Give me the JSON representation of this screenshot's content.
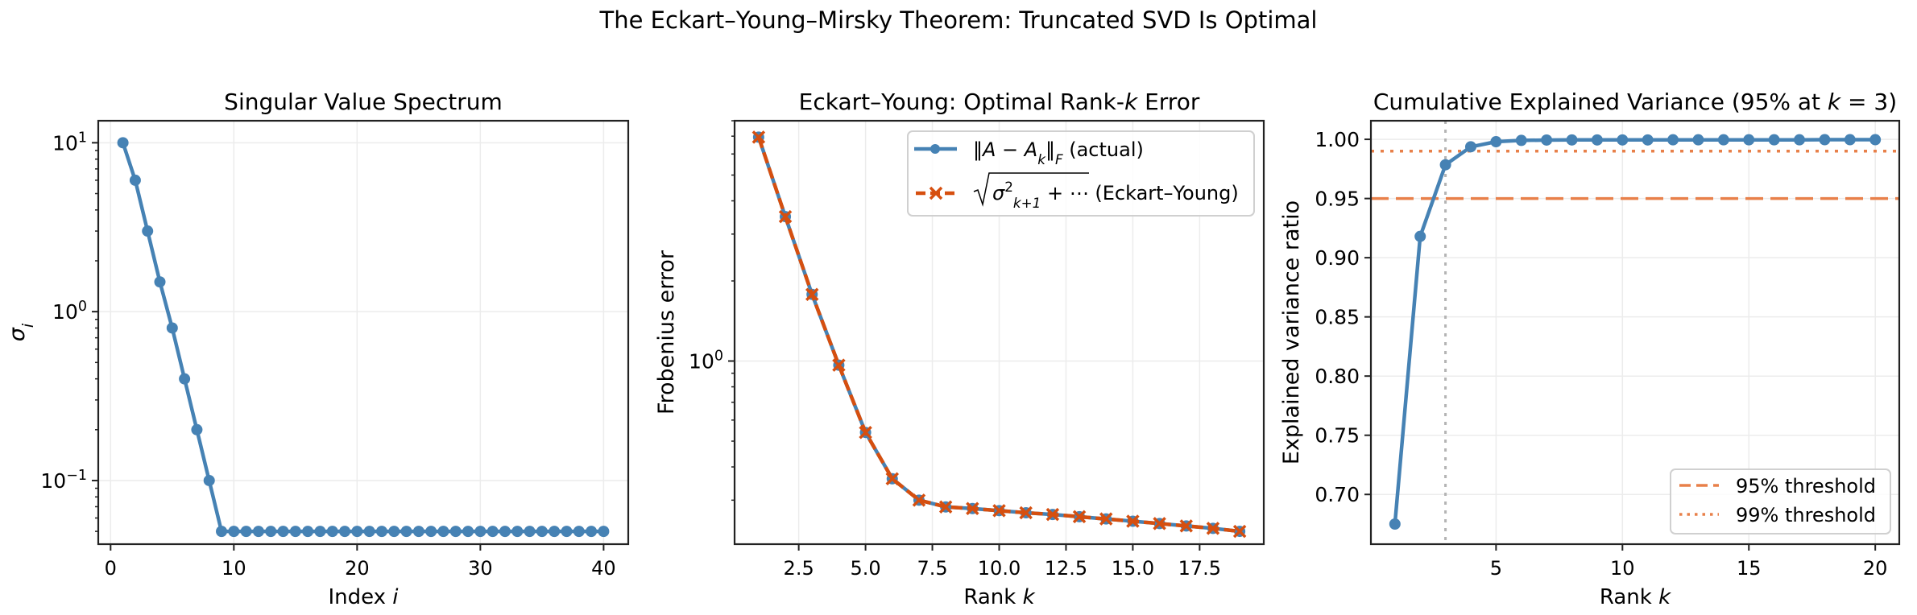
{
  "figure": {
    "suptitle": "The Eckart–Young–Mirsky Theorem: Truncated SVD Is Optimal"
  },
  "colors": {
    "blue": "#4682b4",
    "orange_red": "#d64f0f",
    "orange": "#e8804a",
    "gray_vline": "#b4b4b4",
    "grid": "#ececec",
    "axis": "#222222"
  },
  "chart_data": [
    {
      "type": "line",
      "title": "Singular Value Spectrum",
      "xlabel": "Index i",
      "ylabel": "σ_i",
      "yscale": "log",
      "grid": true,
      "xlim": [
        -1,
        42
      ],
      "ylim": [
        0.042,
        13.5
      ],
      "xticks": [
        0,
        10,
        20,
        30,
        40
      ],
      "yticks": [
        {
          "value": 10,
          "label": "10^1"
        },
        {
          "value": 1,
          "label": "10^0"
        },
        {
          "value": 0.1,
          "label": "10^-1"
        }
      ],
      "series": [
        {
          "name": "σ_i",
          "color": "#4682b4",
          "marker": "o",
          "x": [
            1,
            2,
            3,
            4,
            5,
            6,
            7,
            8,
            9,
            10,
            11,
            12,
            13,
            14,
            15,
            16,
            17,
            18,
            19,
            20,
            21,
            22,
            23,
            24,
            25,
            26,
            27,
            28,
            29,
            30,
            31,
            32,
            33,
            34,
            35,
            36,
            37,
            38,
            39,
            40
          ],
          "values": [
            10,
            6,
            3,
            1.5,
            0.8,
            0.4,
            0.2,
            0.1,
            0.05,
            0.05,
            0.05,
            0.05,
            0.05,
            0.05,
            0.05,
            0.05,
            0.05,
            0.05,
            0.05,
            0.05,
            0.05,
            0.05,
            0.05,
            0.05,
            0.05,
            0.05,
            0.05,
            0.05,
            0.05,
            0.05,
            0.05,
            0.05,
            0.05,
            0.05,
            0.05,
            0.05,
            0.05,
            0.05,
            0.05,
            0.05
          ]
        }
      ]
    },
    {
      "type": "line",
      "title": "Eckart–Young: Optimal Rank-k Error",
      "xlabel": "Rank k",
      "ylabel": "Frobenius error",
      "yscale": "log",
      "grid": true,
      "xlim": [
        0.1,
        19.9
      ],
      "ylim": [
        0.205,
        8.0
      ],
      "xticks": [
        2.5,
        5.0,
        7.5,
        10.0,
        12.5,
        15.0,
        17.5
      ],
      "yticks": [
        {
          "value": 1,
          "label": "10^0"
        }
      ],
      "legend": {
        "position": "upper right",
        "entries": [
          "‖A − A_k‖_F (actual)",
          "√(σ²_{k+1} + ⋯) (Eckart–Young)"
        ]
      },
      "series": [
        {
          "name": "‖A − A_k‖_F (actual)",
          "color": "#4682b4",
          "style": "solid",
          "marker": "o",
          "x": [
            1,
            2,
            3,
            4,
            5,
            6,
            7,
            8,
            9,
            10,
            11,
            12,
            13,
            14,
            15,
            16,
            17,
            18,
            19
          ],
          "values": [
            6.94,
            3.49,
            1.78,
            0.965,
            0.539,
            0.361,
            0.3,
            0.283,
            0.279,
            0.274,
            0.269,
            0.265,
            0.26,
            0.255,
            0.25,
            0.245,
            0.24,
            0.235,
            0.229
          ]
        },
        {
          "name": "√(σ²_{k+1} + ⋯) (Eckart–Young)",
          "color": "#d64f0f",
          "style": "dashed",
          "marker": "x",
          "x": [
            1,
            2,
            3,
            4,
            5,
            6,
            7,
            8,
            9,
            10,
            11,
            12,
            13,
            14,
            15,
            16,
            17,
            18,
            19
          ],
          "values": [
            6.94,
            3.49,
            1.78,
            0.965,
            0.539,
            0.361,
            0.3,
            0.283,
            0.279,
            0.274,
            0.269,
            0.265,
            0.26,
            0.255,
            0.25,
            0.245,
            0.24,
            0.235,
            0.229
          ]
        }
      ]
    },
    {
      "type": "line",
      "title": "Cumulative Explained Variance (95% at k = 3)",
      "xlabel": "Rank k",
      "ylabel": "Explained variance ratio",
      "yscale": "linear",
      "grid": true,
      "xlim": [
        0.05,
        20.95
      ],
      "ylim": [
        0.658,
        1.0157
      ],
      "xticks": [
        5,
        10,
        15,
        20
      ],
      "yticks": [
        {
          "value": 0.7,
          "label": "0.70"
        },
        {
          "value": 0.75,
          "label": "0.75"
        },
        {
          "value": 0.8,
          "label": "0.80"
        },
        {
          "value": 0.85,
          "label": "0.85"
        },
        {
          "value": 0.9,
          "label": "0.90"
        },
        {
          "value": 0.95,
          "label": "0.95"
        },
        {
          "value": 1.0,
          "label": "1.00"
        }
      ],
      "legend": {
        "position": "lower right",
        "entries": [
          "95% threshold",
          "99% threshold"
        ]
      },
      "series": [
        {
          "name": "cumulative explained variance",
          "color": "#4682b4",
          "marker": "o",
          "x": [
            1,
            2,
            3,
            4,
            5,
            6,
            7,
            8,
            9,
            10,
            11,
            12,
            13,
            14,
            15,
            16,
            17,
            18,
            19,
            20
          ],
          "values": [
            0.675,
            0.918,
            0.9785,
            0.9937,
            0.998,
            0.9991,
            0.9994,
            0.9995,
            0.9995,
            0.9995,
            0.9995,
            0.9996,
            0.9996,
            0.9996,
            0.9996,
            0.9996,
            0.9996,
            0.9997,
            0.9997,
            0.9997
          ]
        }
      ],
      "hlines": [
        {
          "name": "95% threshold",
          "y": 0.95,
          "color": "#e8804a",
          "style": "dashed"
        },
        {
          "name": "99% threshold",
          "y": 0.99,
          "color": "#e8804a",
          "style": "dotted"
        }
      ],
      "vlines": [
        {
          "name": "k = 3 marker",
          "x": 3,
          "color": "#b4b4b4",
          "style": "dotted"
        }
      ]
    }
  ]
}
